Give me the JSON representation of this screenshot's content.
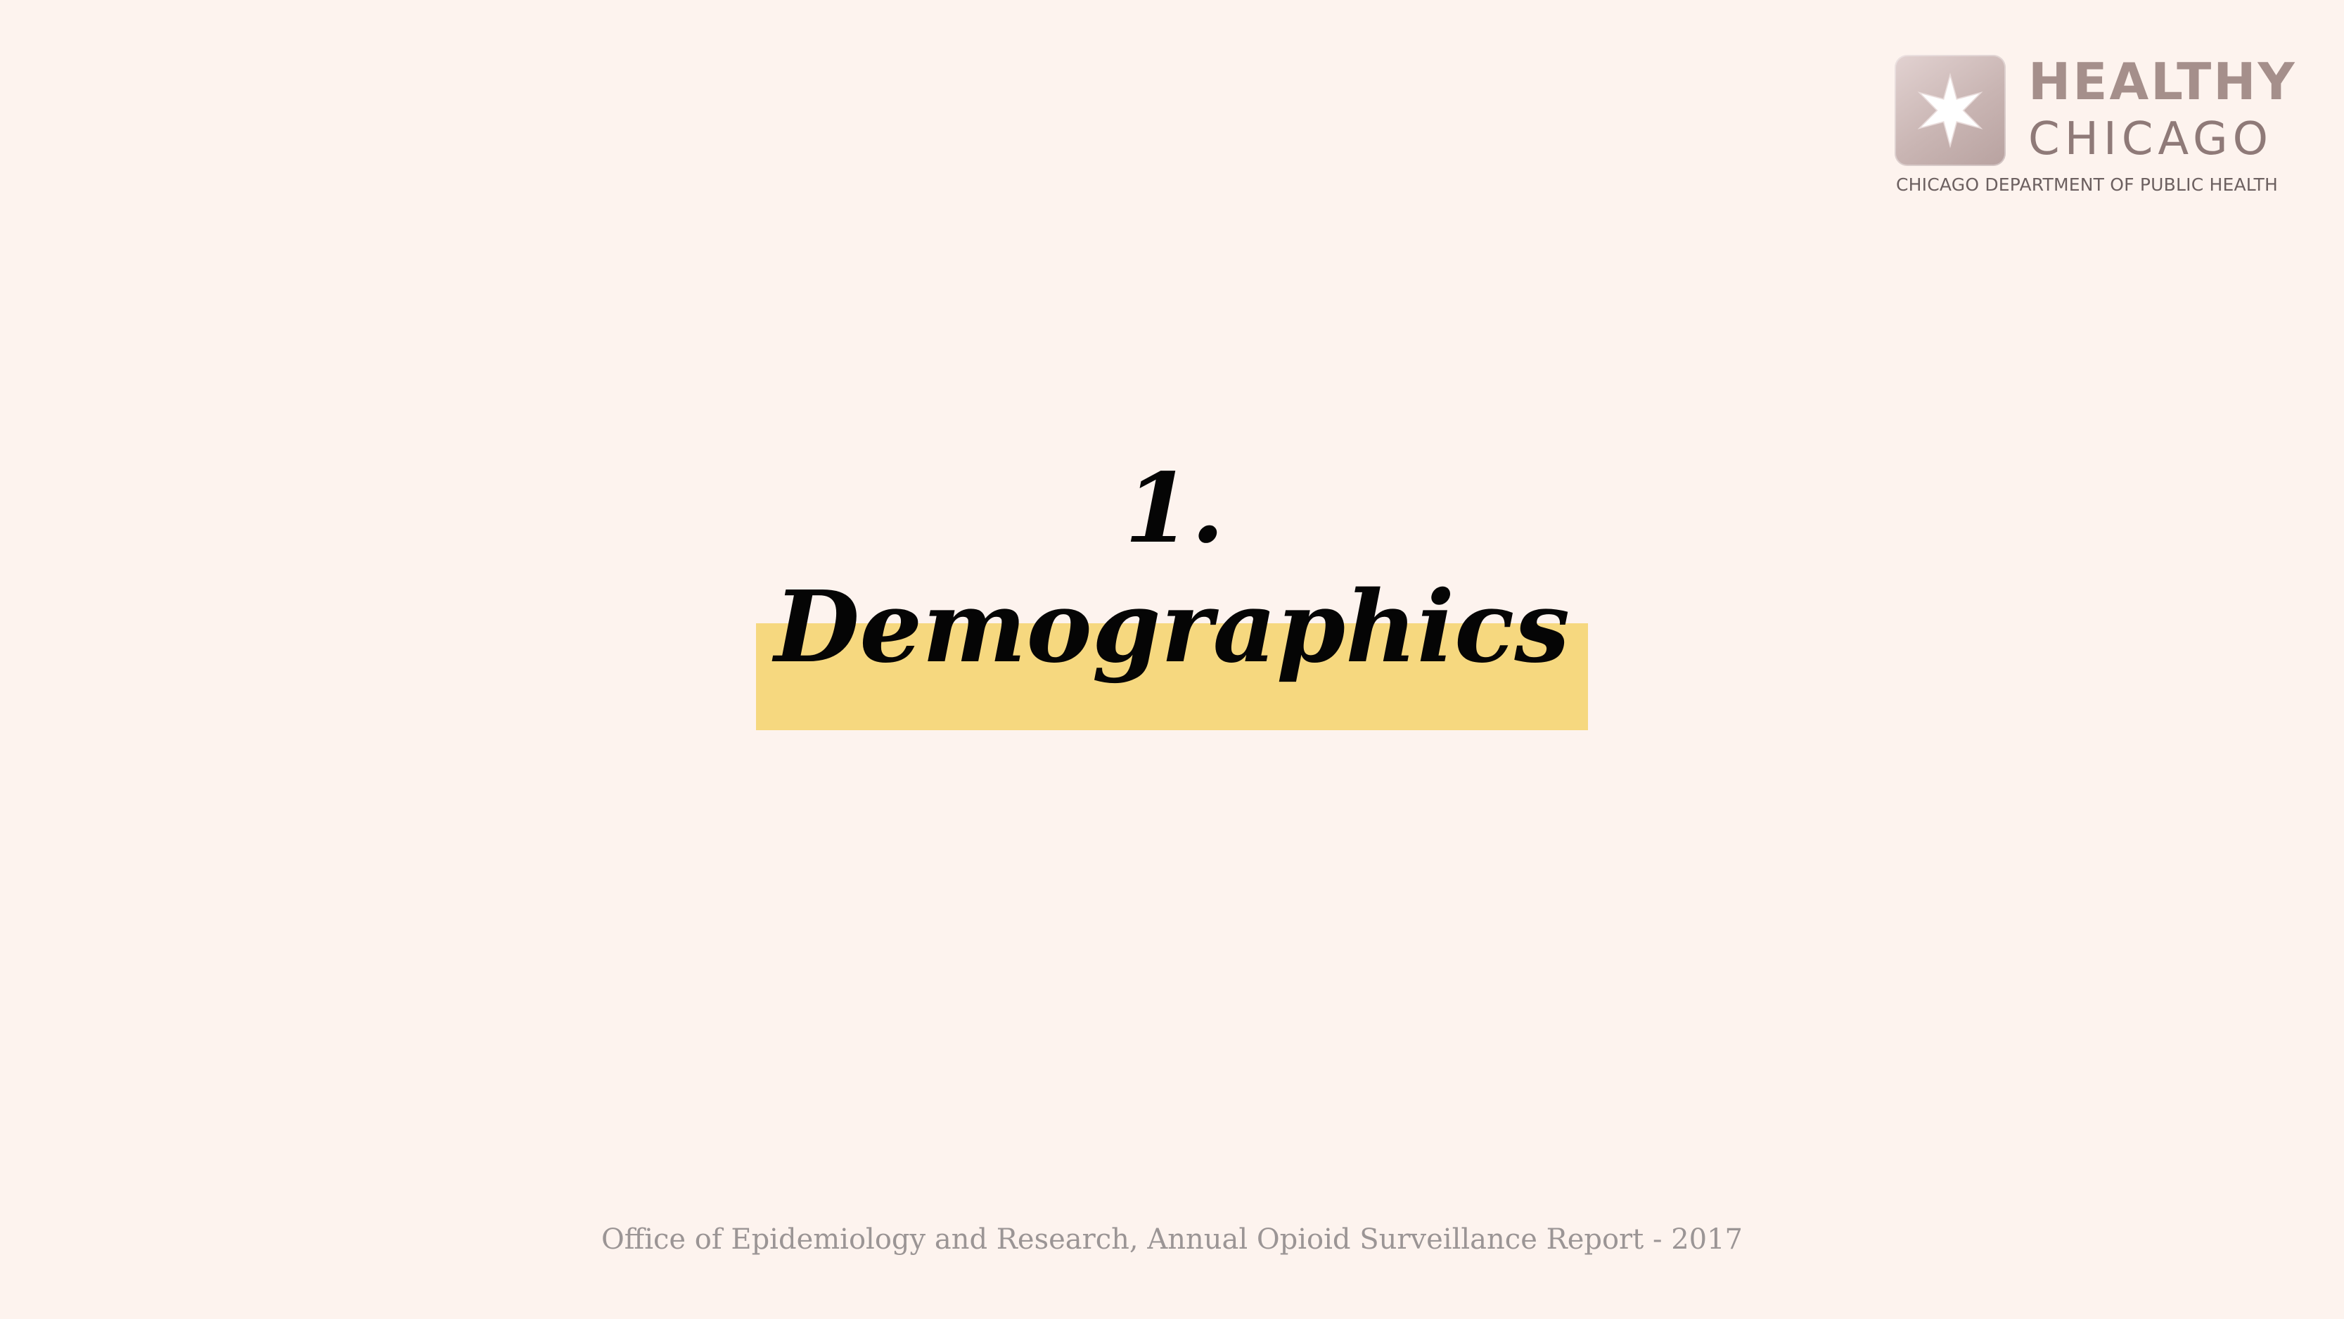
{
  "logo": {
    "icon": "star-icon",
    "line1": "HEALTHY",
    "line2": "CHICAGO",
    "subtitle": "CHICAGO DEPARTMENT OF PUBLIC HEALTH",
    "colors": {
      "tile": "#c9b5b3",
      "text": "#a58f8b"
    }
  },
  "slide": {
    "number": "1.",
    "title": "Demographics",
    "highlight_color": "#f6d87f",
    "background_color": "#fdf3ee"
  },
  "footer": {
    "text": "Office of Epidemiology and Research, Annual Opioid Surveillance Report - 2017"
  }
}
